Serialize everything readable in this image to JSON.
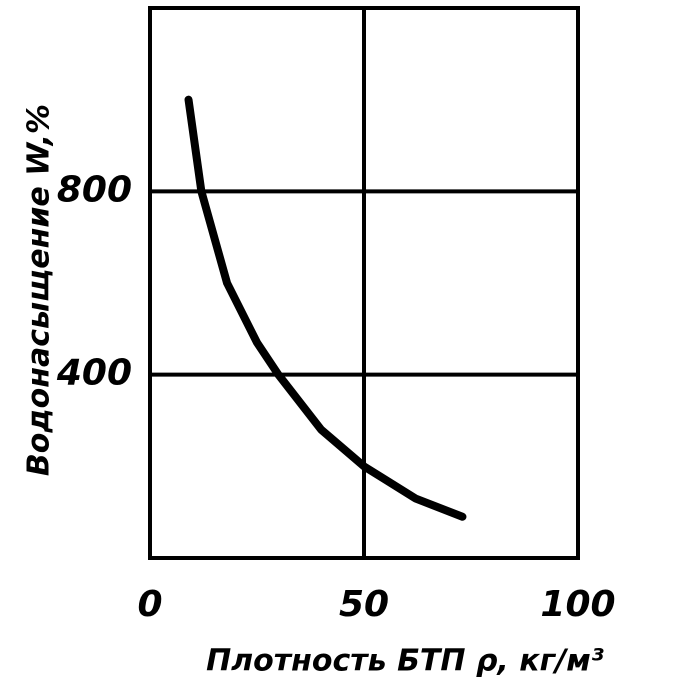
{
  "chart_data": {
    "type": "line",
    "x_label": "Плотность БТП ρ, кг/м³",
    "y_label": "Водонасыщение W,%",
    "series": [
      {
        "color": "#000000",
        "x": [
          9,
          12,
          18,
          25,
          30,
          40,
          50,
          62,
          73
        ],
        "values": [
          1000,
          800,
          600,
          470,
          400,
          280,
          200,
          130,
          90
        ]
      }
    ],
    "xlim": [
      0,
      100
    ],
    "xticks": [
      0,
      50,
      100
    ],
    "ylim": [
      0,
      1200
    ],
    "yticks": [
      400,
      800
    ],
    "grid": true
  }
}
